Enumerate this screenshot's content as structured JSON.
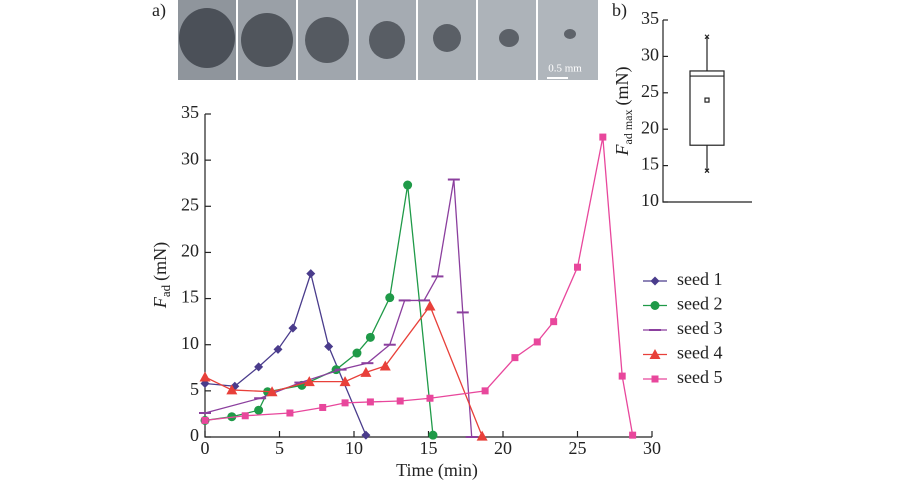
{
  "image_strip": {
    "label": "a)",
    "scale_label": "0.5 mm"
  },
  "chart_data": [
    {
      "type": "line",
      "xlabel": "Time (min)",
      "ylabel_symbol": "F",
      "ylabel_subscript": "ad",
      "ylabel_unit": "(mN)",
      "xlim": [
        0,
        30
      ],
      "xticks": [
        0,
        5,
        10,
        15,
        20,
        25,
        30
      ],
      "ylim": [
        0,
        35
      ],
      "yticks": [
        0,
        5,
        10,
        15,
        20,
        25,
        30,
        35
      ],
      "legend": "right",
      "series": [
        {
          "name": "seed 1",
          "color": "#4a3c8c",
          "marker": "diamond",
          "x": [
            0,
            2,
            3.6,
            4.9,
            5.9,
            7.1,
            8.3,
            10.8
          ],
          "values": [
            5.8,
            5.5,
            7.6,
            9.5,
            11.8,
            17.7,
            9.8,
            0.2
          ]
        },
        {
          "name": "seed 2",
          "color": "#1f9a48",
          "marker": "circle",
          "x": [
            0,
            1.8,
            3.6,
            4.2,
            6.5,
            8.8,
            10.2,
            11.1,
            12.4,
            13.6,
            15.3
          ],
          "values": [
            1.8,
            2.2,
            2.9,
            4.9,
            5.6,
            7.3,
            9.1,
            10.8,
            15.1,
            27.3,
            0.2
          ]
        },
        {
          "name": "seed 3",
          "color": "#8b3f9e",
          "marker": "dash",
          "x": [
            0,
            3.7,
            6.4,
            9.1,
            10.9,
            12.4,
            13.4,
            14.7,
            15.6,
            16.7,
            17.3,
            17.9
          ],
          "values": [
            2.6,
            4.2,
            5.9,
            7.3,
            8.0,
            10.0,
            14.8,
            14.8,
            17.4,
            27.9,
            13.5,
            0
          ]
        },
        {
          "name": "seed 4",
          "color": "#e8403a",
          "marker": "triangle",
          "x": [
            0,
            1.8,
            4.5,
            7,
            9.4,
            10.8,
            12.1,
            15.1,
            18.6
          ],
          "values": [
            6.5,
            5.1,
            4.9,
            6.0,
            6.0,
            7.0,
            7.7,
            14.2,
            0.1
          ]
        },
        {
          "name": "seed 5",
          "color": "#e8479c",
          "marker": "square",
          "x": [
            0,
            2.7,
            5.7,
            7.9,
            9.4,
            11.1,
            13.1,
            15.1,
            18.8,
            20.8,
            22.3,
            23.4,
            25,
            26.7,
            28,
            28.7
          ],
          "values": [
            1.8,
            2.3,
            2.6,
            3.2,
            3.7,
            3.8,
            3.9,
            4.2,
            5.0,
            8.6,
            10.3,
            12.5,
            18.4,
            32.5,
            6.6,
            0.2
          ]
        }
      ]
    },
    {
      "type": "box",
      "label": "b)",
      "ylabel_symbol": "F",
      "ylabel_subscript": "ad max",
      "ylabel_unit": "(mN)",
      "ylim": [
        10,
        35
      ],
      "yticks": [
        10,
        15,
        20,
        25,
        30,
        35
      ],
      "values": {
        "whisker_low": 14.3,
        "q1": 17.8,
        "median": 27.3,
        "q3": 28,
        "whisker_high": 32.7,
        "mean": 24
      }
    }
  ]
}
